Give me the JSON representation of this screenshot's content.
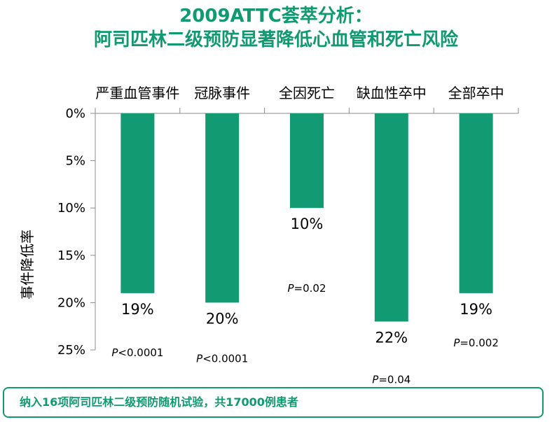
{
  "title": {
    "line1": "2009ATTC荟萃分析：",
    "line2": "阿司匹林二级预防显著降低心血管和死亡风险"
  },
  "footer": "纳入16项阿司匹林二级预防随机试验，共17000例患者",
  "colors": {
    "accent": "#119a72",
    "bar": "#129a73"
  },
  "chart_data": {
    "type": "bar",
    "orientation": "vertical-inverted",
    "title": "",
    "ylabel": "事件降低率",
    "xlabel": "",
    "ylim": [
      0,
      25
    ],
    "categories": [
      "严重血管事件",
      "冠脉事件",
      "全因死亡",
      "缺血性卒中",
      "全部卒中"
    ],
    "values": [
      19,
      20,
      10,
      22,
      19
    ],
    "value_labels": [
      "19%",
      "20%",
      "10%",
      "22%",
      "19%"
    ],
    "y_ticks": [
      "0%",
      "5%",
      "10%",
      "15%",
      "20%",
      "25%"
    ],
    "p_values": [
      {
        "prefix": "P",
        "text": "<0.0001"
      },
      {
        "prefix": "P",
        "text": "<0.0001"
      },
      {
        "prefix": "P",
        "text": "=0.02"
      },
      {
        "prefix": "P",
        "text": "=0.04"
      },
      {
        "prefix": "P",
        "text": "=0.002"
      }
    ],
    "grid": false
  }
}
